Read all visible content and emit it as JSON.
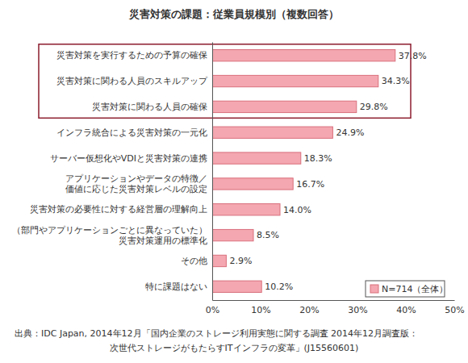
{
  "chart_data": {
    "type": "bar",
    "orientation": "horizontal",
    "title": "災害対策の課題：従業員規模別（複数回答）",
    "categories": [
      "災害対策を実行するための予算の確保",
      "災害対策に関わる人員のスキルアップ",
      "災害対策に関わる人員の確保",
      "インフラ統合による災害対策の一元化",
      "サーバー仮想化やVDIと災害対策の連携",
      "アプリケーションやデータの特徴／\n価値に応じた災害対策レベルの設定",
      "災害対策の必要性に対する経営層の理解向上",
      "（部門やアプリケーションごとに異なっていた）\n災害対策運用の標準化",
      "その他",
      "特に課題はない"
    ],
    "series": [
      {
        "name": "N=714（全体）",
        "color": "#f4a7b0",
        "values": [
          37.8,
          34.3,
          29.8,
          24.9,
          18.3,
          16.7,
          14.0,
          8.5,
          2.9,
          10.2
        ],
        "value_labels": [
          "37.8%",
          "34.3%",
          "29.8%",
          "24.9%",
          "18.3%",
          "16.7%",
          "14.0%",
          "8.5%",
          "2.9%",
          "10.2%"
        ]
      }
    ],
    "xlim": [
      0,
      50
    ],
    "xticks": [
      {
        "value": 0,
        "label": "0%"
      },
      {
        "value": 10,
        "label": "10%"
      },
      {
        "value": 20,
        "label": "20%"
      },
      {
        "value": 30,
        "label": "30%"
      },
      {
        "value": 40,
        "label": "40%"
      },
      {
        "value": 50,
        "label": "50%"
      }
    ],
    "grid": false,
    "legend": "lower right",
    "data_labels": true,
    "annotations": [
      "出典：IDC Japan, 2014年12月「国内企業のストレージ利用実態に関する調査 2014年12月調査版：",
      "次世代ストレージがもたらすITインフラの変革」(J15560601)"
    ]
  }
}
